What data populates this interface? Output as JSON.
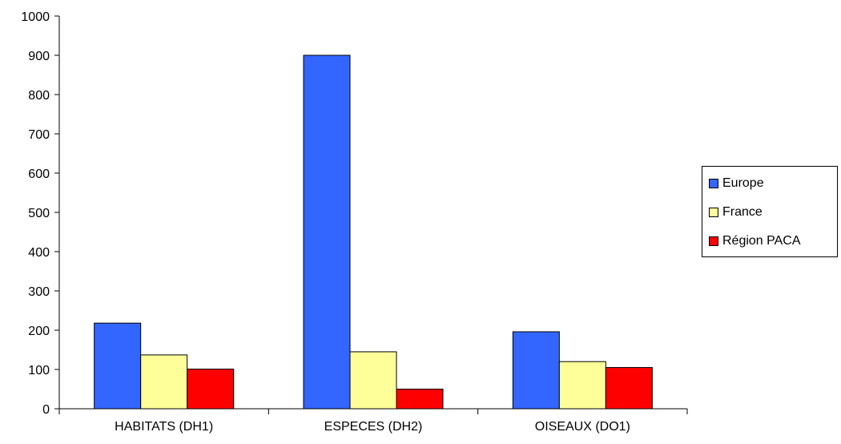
{
  "chart_data": {
    "type": "bar",
    "categories": [
      "HABITATS (DH1)",
      "ESPECES (DH2)",
      "OISEAUX (DO1)"
    ],
    "series": [
      {
        "name": "Europe",
        "values": [
          218,
          900,
          196
        ],
        "color": "#3366FF"
      },
      {
        "name": "France",
        "values": [
          137,
          145,
          120
        ],
        "color": "#FFFF99"
      },
      {
        "name": "Région PACA",
        "values": [
          101,
          50,
          105
        ],
        "color": "#FF0000"
      }
    ],
    "ylim": [
      0,
      1000
    ],
    "yticks": [
      0,
      100,
      200,
      300,
      400,
      500,
      600,
      700,
      800,
      900,
      1000
    ],
    "grid": false,
    "legend_position": "right"
  }
}
